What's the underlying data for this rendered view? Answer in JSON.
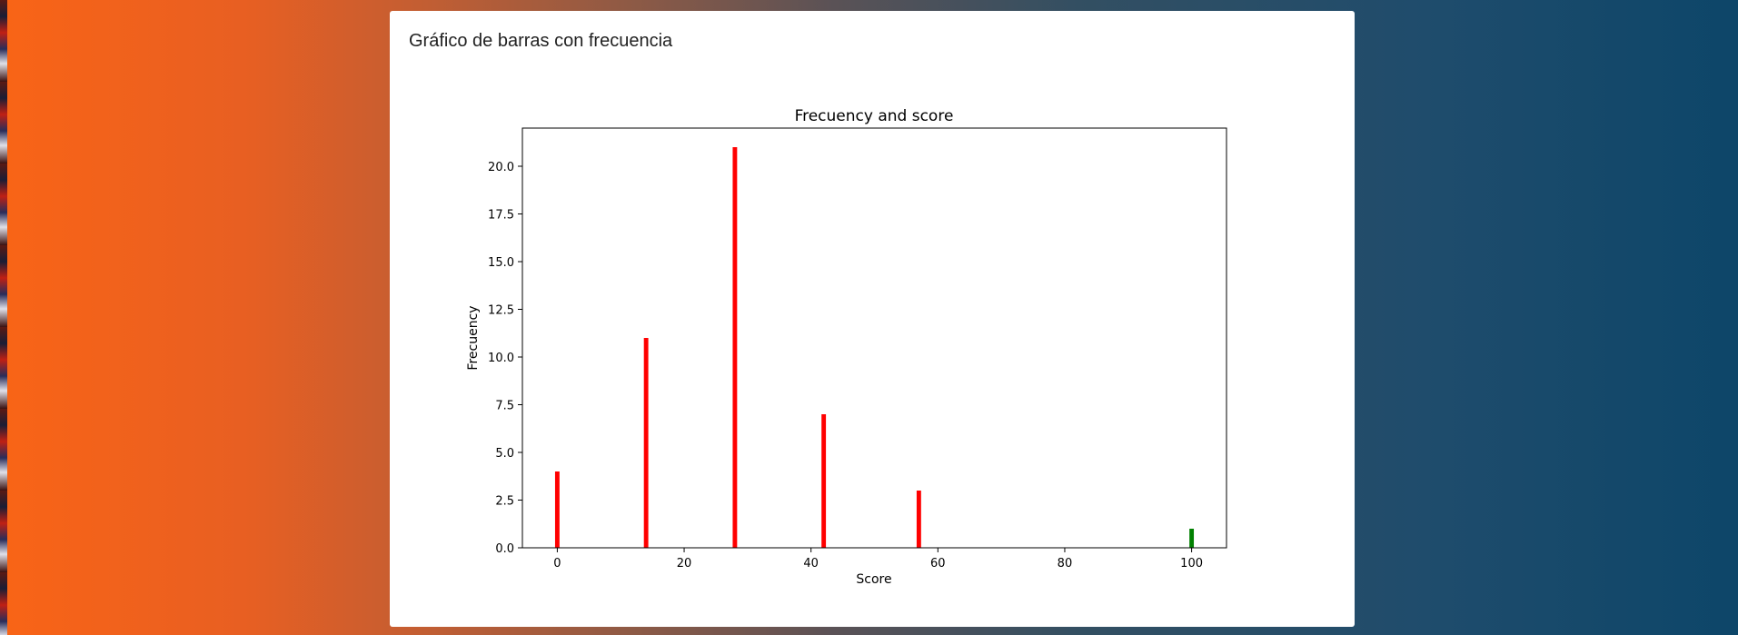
{
  "card": {
    "title": "Gráfico de barras con frecuencia"
  },
  "chart_data": {
    "type": "bar",
    "title": "Frecuency and score",
    "xlabel": "Score",
    "ylabel": "Frecuency",
    "xlim": [
      -5.5,
      105.5
    ],
    "ylim": [
      0,
      22
    ],
    "xticks": [
      "0",
      "20",
      "40",
      "60",
      "80",
      "100"
    ],
    "yticks": [
      "0.0",
      "2.5",
      "5.0",
      "7.5",
      "10.0",
      "12.5",
      "15.0",
      "17.5",
      "20.0"
    ],
    "grid": false,
    "bars": [
      {
        "x": 0,
        "value": 4,
        "color": "#ff0000"
      },
      {
        "x": 14,
        "value": 11,
        "color": "#ff0000"
      },
      {
        "x": 28,
        "value": 21,
        "color": "#ff0000"
      },
      {
        "x": 42,
        "value": 7,
        "color": "#ff0000"
      },
      {
        "x": 57,
        "value": 3,
        "color": "#ff0000"
      },
      {
        "x": 100,
        "value": 1,
        "color": "#008000"
      }
    ]
  }
}
